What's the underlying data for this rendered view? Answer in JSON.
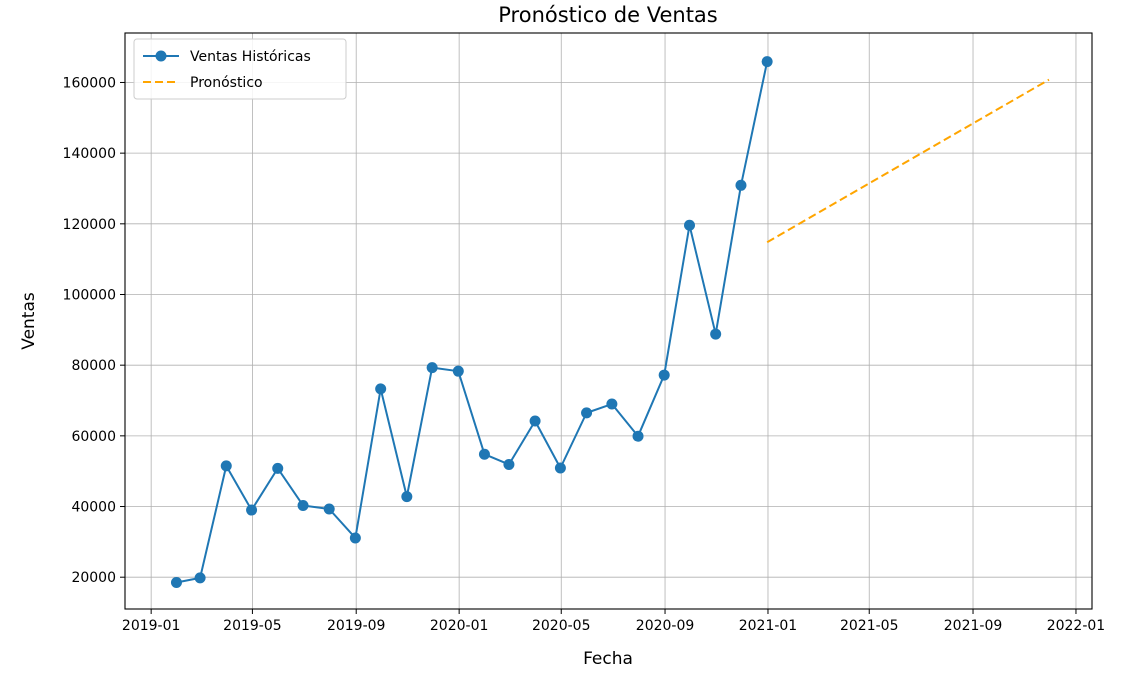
{
  "chart_data": {
    "type": "line",
    "title": "Pronóstico de Ventas",
    "xlabel": "Fecha",
    "ylabel": "Ventas",
    "x_axis": "date",
    "xlim": [
      "2018-12-01",
      "2022-01-20"
    ],
    "ylim": [
      11000,
      174000
    ],
    "x_ticks": [
      "2019-01",
      "2019-05",
      "2019-09",
      "2020-01",
      "2020-05",
      "2020-09",
      "2021-01",
      "2021-05",
      "2021-09",
      "2022-01"
    ],
    "y_ticks": [
      20000,
      40000,
      60000,
      80000,
      100000,
      120000,
      140000,
      160000
    ],
    "grid": true,
    "legend": "top-left",
    "series": [
      {
        "name": "Ventas Históricas",
        "style": "line-marker",
        "color": "#1f77b4",
        "x": [
          "2019-01-31",
          "2019-02-28",
          "2019-03-31",
          "2019-04-30",
          "2019-05-31",
          "2019-06-30",
          "2019-07-31",
          "2019-08-31",
          "2019-09-30",
          "2019-10-31",
          "2019-11-30",
          "2019-12-31",
          "2020-01-31",
          "2020-02-29",
          "2020-03-31",
          "2020-04-30",
          "2020-05-31",
          "2020-06-30",
          "2020-07-31",
          "2020-08-31",
          "2020-09-30",
          "2020-10-31",
          "2020-11-30",
          "2020-12-31"
        ],
        "y": [
          18500,
          19800,
          51500,
          39000,
          50800,
          40300,
          39300,
          31100,
          73300,
          42800,
          79300,
          78300,
          54800,
          51900,
          64200,
          50900,
          66500,
          69000,
          59900,
          77200,
          119600,
          88800,
          130900,
          165900
        ]
      },
      {
        "name": "Pronóstico",
        "style": "dashed",
        "color": "#ffa500",
        "x": [
          "2020-12-31",
          "2021-11-30"
        ],
        "y": [
          114800,
          160800
        ]
      }
    ]
  }
}
